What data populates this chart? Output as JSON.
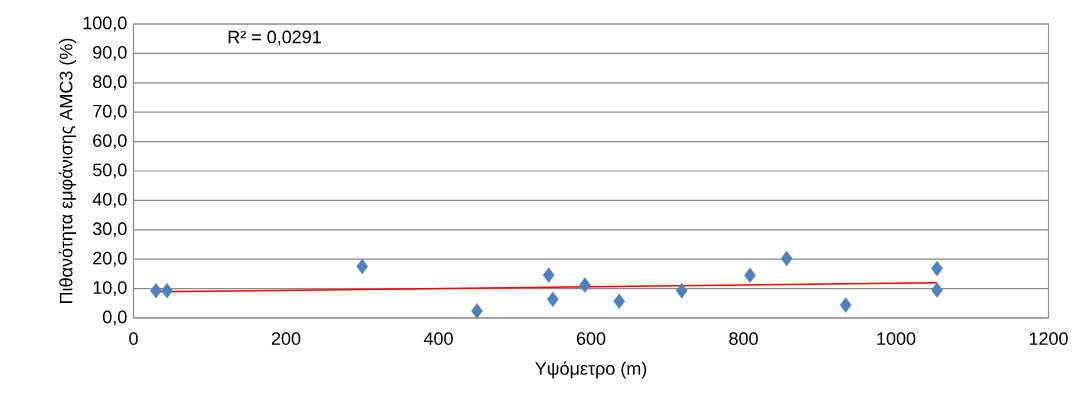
{
  "chart_data": {
    "type": "scatter",
    "xlabel": "Υψόμετρο (m)",
    "ylabel": "Πιθανότητα εμφάνισης AMC3 (%)",
    "annotations": [
      "R² = 0,0291"
    ],
    "series": [
      {
        "color": "#4f81bd",
        "marker": "diamond",
        "x": [
          29.5,
          44,
          300,
          450.5,
          544.5,
          550,
          592,
          637,
          719,
          808.5,
          856.6,
          934,
          1053.8,
          1053.8
        ],
        "values": [
          9.3,
          9.3,
          17.5,
          2.4,
          14.6,
          6.4,
          11.2,
          5.7,
          9.3,
          14.5,
          20.2,
          4.4,
          16.8,
          9.5
        ]
      },
      {
        "type": "line",
        "color": "#ff0000",
        "x": [
          29.5,
          1053.8
        ],
        "values": [
          8.9,
          12.0
        ]
      }
    ],
    "xlim": [
      0,
      1200
    ],
    "ylim": [
      0,
      100
    ],
    "xticks": [
      0,
      200,
      400,
      600,
      800,
      1000,
      1200
    ],
    "yticks": [
      {
        "value": 0,
        "label": "0,0"
      },
      {
        "value": 10,
        "label": "10,0"
      },
      {
        "value": 20,
        "label": "20,0"
      },
      {
        "value": 30,
        "label": "30,0"
      },
      {
        "value": 40,
        "label": "40,0"
      },
      {
        "value": 50,
        "label": "50,0"
      },
      {
        "value": 60,
        "label": "60,0"
      },
      {
        "value": 70,
        "label": "70,0"
      },
      {
        "value": 80,
        "label": "80,0"
      },
      {
        "value": 90,
        "label": "90,0"
      },
      {
        "value": 100,
        "label": "100,0"
      }
    ],
    "grid": "y"
  }
}
